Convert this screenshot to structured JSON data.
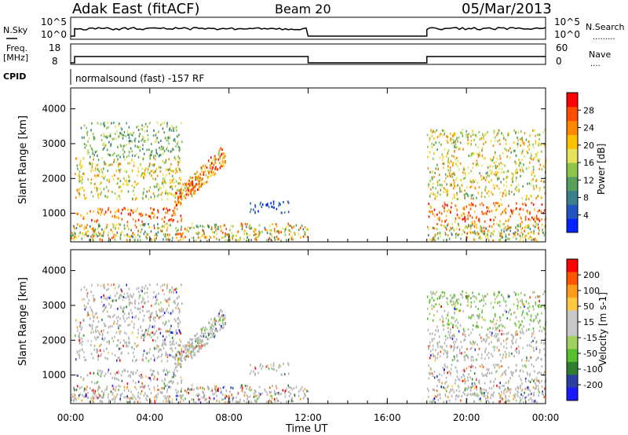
{
  "header": {
    "station": "Adak East (fitACF)",
    "beam": "Beam 20",
    "date": "05/Mar/2013"
  },
  "panels": {
    "nsky": {
      "label": "N.Sky",
      "ticks": [
        "10^5",
        "10^0"
      ],
      "right_label": "N.Search",
      "right_ticks": [
        "10^5",
        "10^0"
      ]
    },
    "freq": {
      "label_line1": "Freq.",
      "label_line2": "[MHz]",
      "ticks": [
        "18",
        "8"
      ],
      "right_label": "Nave",
      "right_ticks": [
        "60",
        "0"
      ]
    },
    "cpid": {
      "label": "CPID",
      "text": "normalsound (fast) -157 RF"
    }
  },
  "chart_data": [
    {
      "type": "heatmap",
      "title": "",
      "xlabel": "",
      "ylabel": "Slant Range [km]",
      "x_ticks": [
        "00:00",
        "04:00",
        "08:00",
        "12:00",
        "16:00",
        "20:00",
        "00:00"
      ],
      "xlim_hours": [
        0,
        24
      ],
      "y_ticks": [
        1000,
        2000,
        3000,
        4000
      ],
      "ylim": [
        180,
        4600
      ],
      "colorbar": {
        "label": "Power [dB]",
        "ticks": [
          "4",
          "8",
          "12",
          "16",
          "20",
          "24",
          "28"
        ],
        "range": [
          0,
          30
        ],
        "colors": [
          "#0022ff",
          "#2255c0",
          "#3a7f8c",
          "#55a05a",
          "#8cc64a",
          "#e6e35a",
          "#ffc000",
          "#ff8800",
          "#ff4c00",
          "#ff0000"
        ]
      },
      "data_gaps_hours": [
        [
          12.0,
          18.0
        ]
      ],
      "bands": [
        {
          "t0": 0.2,
          "t1": 5.6,
          "r0": 750,
          "r1": 1150,
          "level": "high"
        },
        {
          "t0": 0.2,
          "t1": 5.6,
          "r0": 1400,
          "r1": 2600,
          "level": "mid"
        },
        {
          "t0": 0.5,
          "t1": 5.6,
          "r0": 2600,
          "r1": 3600,
          "level": "low"
        },
        {
          "t0": 5.2,
          "t1": 7.8,
          "r0": 1100,
          "r1": 3000,
          "level": "rising"
        },
        {
          "t0": 9.0,
          "t1": 11.0,
          "r0": 1000,
          "r1": 1350,
          "level": "weak"
        },
        {
          "t0": 18.0,
          "t1": 24.0,
          "r0": 750,
          "r1": 1300,
          "level": "high"
        },
        {
          "t0": 18.0,
          "t1": 24.0,
          "r0": 1400,
          "r1": 3400,
          "level": "mid"
        }
      ]
    },
    {
      "type": "heatmap",
      "title": "",
      "xlabel": "Time UT",
      "ylabel": "Slant Range [km]",
      "x_ticks": [
        "00:00",
        "04:00",
        "08:00",
        "12:00",
        "16:00",
        "20:00",
        "00:00"
      ],
      "xlim_hours": [
        0,
        24
      ],
      "y_ticks": [
        1000,
        2000,
        3000,
        4000
      ],
      "ylim": [
        180,
        4600
      ],
      "colorbar": {
        "label": "Velocity [m s-1]",
        "ticks": [
          "200",
          "100",
          "50",
          "15",
          "-15",
          "-50",
          "-100",
          "-200"
        ],
        "range": [
          -250,
          250
        ],
        "colors": [
          "#ff0000",
          "#ff5500",
          "#ff9a1a",
          "#ffc840",
          "#c8c8c8",
          "#c8c8c8",
          "#a0d060",
          "#55c030",
          "#2d7f2d",
          "#2a3f9f",
          "#1a1aff"
        ]
      },
      "data_gaps_hours": [
        [
          12.0,
          18.0
        ]
      ]
    }
  ],
  "colors": {
    "ground_scatter": "#b4b4b4",
    "axis": "#000000"
  }
}
